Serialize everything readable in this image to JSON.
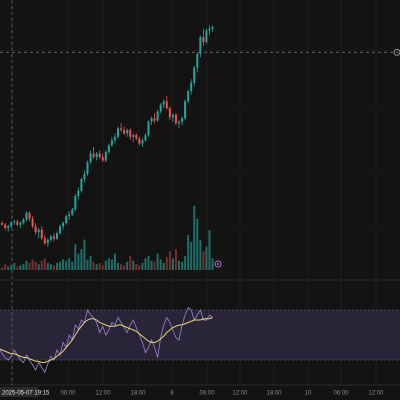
{
  "chart_data": [
    {
      "type": "candlestick",
      "panel": "price",
      "ohlc": [
        [
          184,
          185,
          183,
          184.5
        ],
        [
          184.5,
          186,
          184,
          185.5
        ],
        [
          185.5,
          186,
          184.8,
          185
        ],
        [
          185,
          185.5,
          183.5,
          184
        ],
        [
          184,
          185,
          183,
          184.5
        ],
        [
          184.5,
          186,
          184,
          185.8
        ],
        [
          185.8,
          186.5,
          185,
          186
        ],
        [
          186,
          186.5,
          184.5,
          185
        ],
        [
          185,
          186,
          184,
          185.5
        ],
        [
          185.5,
          187,
          185,
          186.5
        ],
        [
          186.5,
          189,
          186,
          188.5
        ],
        [
          188.5,
          189,
          186,
          186.8
        ],
        [
          186.8,
          187.5,
          184,
          184.5
        ],
        [
          184.5,
          185.5,
          182,
          182.8
        ],
        [
          182.8,
          184,
          181,
          183.5
        ],
        [
          183.5,
          184.5,
          180.5,
          181
        ],
        [
          181,
          182,
          179,
          179.5
        ],
        [
          179.5,
          181,
          178.5,
          180.5
        ],
        [
          180.5,
          182,
          180,
          181.5
        ],
        [
          181.5,
          182.5,
          180,
          180.8
        ],
        [
          180.8,
          183,
          180.5,
          182.5
        ],
        [
          182.5,
          185,
          182,
          184.5
        ],
        [
          184.5,
          186,
          183.5,
          185.5
        ],
        [
          185.5,
          188,
          185,
          187.5
        ],
        [
          187.5,
          189,
          186.5,
          188
        ],
        [
          188,
          190,
          187.5,
          189.5
        ],
        [
          189.5,
          194,
          189,
          193.5
        ],
        [
          193.5,
          196,
          192.5,
          195
        ],
        [
          195,
          199,
          194.5,
          198.5
        ],
        [
          198.5,
          201,
          197.5,
          200
        ],
        [
          200,
          204,
          199.5,
          203.5
        ],
        [
          203.5,
          207,
          203,
          206
        ],
        [
          206,
          208,
          204.5,
          205
        ],
        [
          205,
          206.5,
          204,
          206
        ],
        [
          206,
          207,
          204.5,
          205
        ],
        [
          205,
          206,
          203.5,
          204
        ],
        [
          204,
          207,
          203.5,
          206.5
        ],
        [
          206.5,
          209,
          206,
          208.5
        ],
        [
          208.5,
          211,
          208,
          210
        ],
        [
          210,
          212,
          209,
          211
        ],
        [
          211,
          214,
          210.5,
          213.5
        ],
        [
          213.5,
          215,
          212.5,
          213
        ],
        [
          213,
          214,
          211.5,
          212
        ],
        [
          212,
          213.5,
          211,
          213
        ],
        [
          213,
          213.5,
          210,
          211
        ],
        [
          211,
          212,
          209.5,
          211.5
        ],
        [
          211.5,
          212,
          210,
          210.5
        ],
        [
          210.5,
          211,
          208.5,
          209
        ],
        [
          209,
          210.5,
          208,
          210
        ],
        [
          210,
          212,
          209.5,
          211.5
        ],
        [
          211.5,
          216,
          211,
          215.5
        ],
        [
          215.5,
          217,
          214.5,
          216.5
        ],
        [
          216.5,
          218,
          215,
          215.8
        ],
        [
          215.8,
          219,
          215.5,
          218.5
        ],
        [
          218.5,
          221,
          218,
          220.5
        ],
        [
          220.5,
          222,
          219.5,
          221.5
        ],
        [
          221.5,
          223,
          219,
          219.5
        ],
        [
          219.5,
          220,
          216,
          216.8
        ],
        [
          216.8,
          218,
          215.5,
          217.5
        ],
        [
          217.5,
          218,
          214.5,
          215
        ],
        [
          215,
          216,
          213.5,
          215.5
        ],
        [
          215.5,
          217,
          214.5,
          216.5
        ],
        [
          216.5,
          222,
          216,
          221.5
        ],
        [
          221.5,
          225,
          221,
          224.5
        ],
        [
          224.5,
          228,
          223.5,
          227
        ],
        [
          227,
          232,
          226,
          231.5
        ],
        [
          231.5,
          236,
          230,
          235.5
        ],
        [
          235.5,
          241,
          234.5,
          240.5
        ],
        [
          240.5,
          243,
          238,
          239
        ],
        [
          239,
          243,
          238.5,
          242.5
        ],
        [
          242.5,
          244,
          241,
          243
        ],
        [
          243,
          244,
          242,
          243.5
        ]
      ],
      "y_range": [
        171,
        250
      ],
      "cursor_price_level": 236
    },
    {
      "type": "bar",
      "panel": "volume",
      "values": [
        3,
        4,
        2,
        5,
        3,
        4,
        6,
        3,
        4,
        5,
        8,
        6,
        9,
        7,
        5,
        8,
        10,
        6,
        5,
        4,
        6,
        7,
        9,
        8,
        10,
        7,
        22,
        14,
        18,
        26,
        9,
        12,
        7,
        5,
        6,
        4,
        8,
        10,
        9,
        14,
        6,
        5,
        4,
        7,
        12,
        8,
        5,
        4,
        6,
        10,
        12,
        8,
        7,
        14,
        9,
        6,
        11,
        16,
        10,
        18,
        8,
        7,
        12,
        30,
        24,
        55,
        44,
        26,
        16,
        20,
        34,
        10
      ],
      "y_range": [
        0,
        60
      ]
    },
    {
      "type": "line",
      "panel": "oscillator",
      "series": [
        {
          "values": [
            45,
            40,
            35,
            32,
            30,
            33,
            38,
            34,
            30,
            28,
            34,
            30,
            26,
            22,
            28,
            24,
            20,
            27,
            33,
            30,
            38,
            34,
            44,
            40,
            50,
            46,
            58,
            55,
            62,
            60,
            70,
            66,
            64,
            60,
            52,
            57,
            50,
            54,
            60,
            58,
            64,
            60,
            56,
            52,
            58,
            62,
            56,
            50,
            44,
            36,
            40,
            46,
            40,
            32,
            48,
            58,
            64,
            60,
            54,
            48,
            46,
            58,
            66,
            72,
            70,
            62,
            66,
            70,
            62,
            62,
            66,
            64
          ]
        },
        {
          "values": [
            40,
            39,
            38,
            37,
            36,
            35,
            35,
            34,
            33,
            32,
            32,
            31,
            30,
            29,
            29,
            28,
            28,
            29,
            30,
            31,
            33,
            35,
            37,
            40,
            43,
            46,
            50,
            54,
            57,
            60,
            62,
            63,
            63,
            62,
            60,
            59,
            58,
            57,
            57,
            57,
            58,
            58,
            57,
            56,
            55,
            54,
            53,
            51,
            49,
            47,
            45,
            44,
            44,
            45,
            47,
            49,
            52,
            54,
            56,
            57,
            58,
            58,
            59,
            60,
            61,
            62,
            62,
            62,
            63,
            63,
            63,
            64
          ]
        }
      ],
      "band": [
        30,
        70
      ],
      "y_range": [
        10,
        90
      ]
    }
  ],
  "x_axis": {
    "ticks": [
      "06:00",
      "12:00",
      "18:00",
      "8",
      "06:00",
      "12:00",
      "18:00",
      "10",
      "06:00",
      "12:00"
    ]
  },
  "cursor_time_label": "2025-05-07  19:15",
  "colors": {
    "background": "#131313",
    "up_candle": "#26a69a",
    "down_candle": "#ef5350",
    "volume_up": "#1e6f68",
    "volume_down": "#7a2e2e",
    "oscillator_line": "#8e7cc3",
    "oscillator_signal": "#e8d56b",
    "oscillator_band": "#2a2438",
    "crosshair": "#6a6a6a",
    "marker": "#b36ad6"
  }
}
